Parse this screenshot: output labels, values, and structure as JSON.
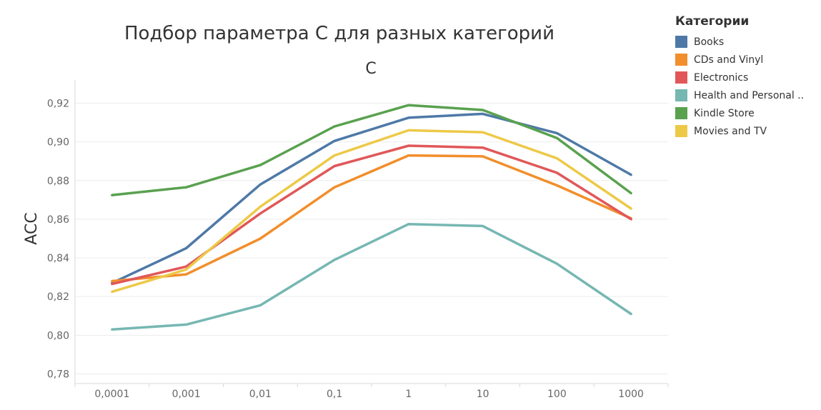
{
  "chart_data": {
    "type": "line",
    "title": "Подбор параметра C для разных категорий",
    "xlabel": "C",
    "ylabel": "ACC",
    "categories": [
      "0,0001",
      "0,001",
      "0,01",
      "0,1",
      "1",
      "10",
      "100",
      "1000"
    ],
    "y_ticks": [
      "0,78",
      "0,80",
      "0,82",
      "0,84",
      "0,86",
      "0,88",
      "0,90",
      "0,92"
    ],
    "ylim": [
      0.775,
      0.932
    ],
    "grid": "horizontal",
    "legend_title": "Категории",
    "legend_position": "right",
    "series": [
      {
        "name": "Books",
        "color": "#4e79a7",
        "values": [
          0.827,
          0.845,
          0.878,
          0.9005,
          0.9125,
          0.9145,
          0.9045,
          0.883
        ]
      },
      {
        "name": "CDs and Vinyl",
        "color": "#f28e2b",
        "values": [
          0.828,
          0.8315,
          0.85,
          0.8765,
          0.893,
          0.8925,
          0.8775,
          0.8605
        ]
      },
      {
        "name": "Electronics",
        "color": "#e15759",
        "values": [
          0.8265,
          0.8355,
          0.863,
          0.8875,
          0.898,
          0.897,
          0.884,
          0.86
        ]
      },
      {
        "name": "Health and Personal ..",
        "color": "#76b7b2",
        "values": [
          0.803,
          0.8055,
          0.8155,
          0.839,
          0.8575,
          0.8565,
          0.837,
          0.811
        ]
      },
      {
        "name": "Kindle Store",
        "color": "#59a14f",
        "values": [
          0.8725,
          0.8765,
          0.888,
          0.908,
          0.919,
          0.9165,
          0.902,
          0.8735
        ]
      },
      {
        "name": "Movies and TV",
        "color": "#edc948",
        "values": [
          0.8225,
          0.834,
          0.8665,
          0.893,
          0.906,
          0.905,
          0.8915,
          0.8655
        ]
      }
    ]
  }
}
